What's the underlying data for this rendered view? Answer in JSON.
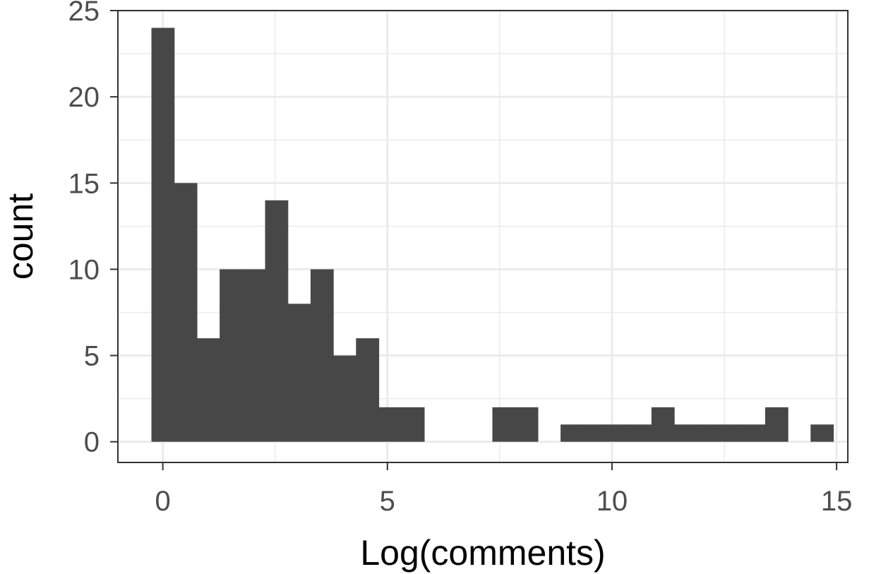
{
  "chart_data": {
    "type": "histogram",
    "title": "",
    "xlabel": "Log(comments)",
    "ylabel": "count",
    "xlim": [
      -1,
      15.25
    ],
    "ylim": [
      -1.2,
      25
    ],
    "x_ticks": [
      0,
      5,
      10,
      15
    ],
    "y_ticks": [
      0,
      5,
      10,
      15,
      20,
      25
    ],
    "bin_width": 0.506,
    "bins": [
      {
        "x": 0.0,
        "count": 24
      },
      {
        "x": 0.506,
        "count": 15
      },
      {
        "x": 1.012,
        "count": 6
      },
      {
        "x": 1.518,
        "count": 10
      },
      {
        "x": 2.024,
        "count": 10
      },
      {
        "x": 2.53,
        "count": 14
      },
      {
        "x": 3.036,
        "count": 8
      },
      {
        "x": 3.542,
        "count": 10
      },
      {
        "x": 4.048,
        "count": 5
      },
      {
        "x": 4.554,
        "count": 6
      },
      {
        "x": 5.06,
        "count": 2
      },
      {
        "x": 5.566,
        "count": 2
      },
      {
        "x": 6.072,
        "count": 0
      },
      {
        "x": 6.578,
        "count": 0
      },
      {
        "x": 7.084,
        "count": 0
      },
      {
        "x": 7.59,
        "count": 2
      },
      {
        "x": 8.096,
        "count": 2
      },
      {
        "x": 8.602,
        "count": 0
      },
      {
        "x": 9.108,
        "count": 1
      },
      {
        "x": 9.614,
        "count": 1
      },
      {
        "x": 10.12,
        "count": 1
      },
      {
        "x": 10.626,
        "count": 1
      },
      {
        "x": 11.132,
        "count": 2
      },
      {
        "x": 11.638,
        "count": 1
      },
      {
        "x": 12.144,
        "count": 1
      },
      {
        "x": 12.65,
        "count": 1
      },
      {
        "x": 13.156,
        "count": 1
      },
      {
        "x": 13.662,
        "count": 2
      },
      {
        "x": 14.168,
        "count": 0
      },
      {
        "x": 14.674,
        "count": 1
      }
    ],
    "grid": true,
    "legend": "none",
    "colors": {
      "bar": "#474747",
      "grid": "#ebebeb",
      "panel_border": "#333333",
      "tick_text": "#4d4d4d",
      "axis_title": "#000000"
    }
  }
}
